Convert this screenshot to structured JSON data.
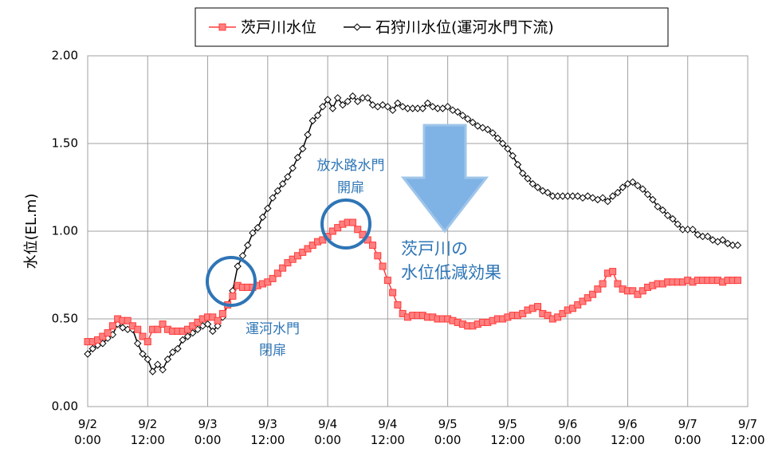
{
  "chart_data": {
    "type": "line",
    "y_label": "水位(EL.m)",
    "xlim": [
      0,
      132
    ],
    "ylim": [
      0,
      2
    ],
    "xticks": [
      {
        "value": 0,
        "label": "9/2 0:00"
      },
      {
        "value": 12,
        "label": "9/2 12:00"
      },
      {
        "value": 24,
        "label": "9/3 0:00"
      },
      {
        "value": 36,
        "label": "9/3 12:00"
      },
      {
        "value": 48,
        "label": "9/4 0:00"
      },
      {
        "value": 60,
        "label": "9/4 12:00"
      },
      {
        "value": 72,
        "label": "9/5 0:00"
      },
      {
        "value": 84,
        "label": "9/5 12:00"
      },
      {
        "value": 96,
        "label": "9/6 0:00"
      },
      {
        "value": 108,
        "label": "9/6 12:00"
      },
      {
        "value": 120,
        "label": "9/7 0:00"
      },
      {
        "value": 132,
        "label": "9/7 12:00"
      }
    ],
    "yticks": [
      {
        "value": 0,
        "label": "0.00"
      },
      {
        "value": 0.5,
        "label": "0.50"
      },
      {
        "value": 1,
        "label": "1.00"
      },
      {
        "value": 1.5,
        "label": "1.50"
      },
      {
        "value": 2,
        "label": "2.00"
      }
    ],
    "grid": true,
    "legend": "top",
    "x": [
      0,
      1,
      2,
      3,
      4,
      5,
      6,
      7,
      8,
      9,
      10,
      11,
      12,
      13,
      14,
      15,
      16,
      17,
      18,
      19,
      20,
      21,
      22,
      23,
      24,
      25,
      26,
      27,
      28,
      29,
      30,
      31,
      32,
      33,
      34,
      35,
      36,
      37,
      38,
      39,
      40,
      41,
      42,
      43,
      44,
      45,
      46,
      47,
      48,
      49,
      50,
      51,
      52,
      53,
      54,
      55,
      56,
      57,
      58,
      59,
      60,
      61,
      62,
      63,
      64,
      65,
      66,
      67,
      68,
      69,
      70,
      71,
      72,
      73,
      74,
      75,
      76,
      77,
      78,
      79,
      80,
      81,
      82,
      83,
      84,
      85,
      86,
      87,
      88,
      89,
      90,
      91,
      92,
      93,
      94,
      95,
      96,
      97,
      98,
      99,
      100,
      101,
      102,
      103,
      104,
      105,
      106,
      107,
      108,
      109,
      110,
      111,
      112,
      113,
      114,
      115,
      116,
      117,
      118,
      119,
      120,
      121,
      122,
      123,
      124,
      125,
      126,
      127,
      128,
      129,
      130
    ],
    "series": [
      {
        "name": "茨戸川水位",
        "color": "#ff3b3b",
        "marker": "square",
        "values": [
          0.37,
          0.37,
          0.38,
          0.4,
          0.42,
          0.46,
          0.5,
          0.49,
          0.49,
          0.46,
          0.44,
          0.4,
          0.37,
          0.44,
          0.44,
          0.47,
          0.44,
          0.43,
          0.43,
          0.43,
          0.44,
          0.46,
          0.48,
          0.5,
          0.51,
          0.51,
          0.49,
          0.53,
          0.58,
          0.63,
          0.69,
          0.68,
          0.68,
          0.68,
          0.69,
          0.7,
          0.71,
          0.73,
          0.76,
          0.79,
          0.82,
          0.84,
          0.86,
          0.88,
          0.9,
          0.92,
          0.94,
          0.95,
          0.97,
          1.0,
          1.02,
          1.04,
          1.05,
          1.05,
          1.01,
          0.98,
          0.95,
          0.92,
          0.86,
          0.8,
          0.72,
          0.65,
          0.58,
          0.53,
          0.51,
          0.52,
          0.52,
          0.52,
          0.51,
          0.51,
          0.5,
          0.5,
          0.5,
          0.49,
          0.48,
          0.47,
          0.46,
          0.46,
          0.47,
          0.48,
          0.48,
          0.49,
          0.5,
          0.5,
          0.51,
          0.52,
          0.52,
          0.53,
          0.55,
          0.56,
          0.57,
          0.53,
          0.52,
          0.5,
          0.51,
          0.53,
          0.55,
          0.56,
          0.58,
          0.6,
          0.62,
          0.64,
          0.67,
          0.7,
          0.76,
          0.77,
          0.7,
          0.67,
          0.66,
          0.66,
          0.64,
          0.66,
          0.68,
          0.69,
          0.7,
          0.7,
          0.71,
          0.71,
          0.71,
          0.71,
          0.72,
          0.71,
          0.72,
          0.72,
          0.72,
          0.72,
          0.72,
          0.71,
          0.72,
          0.72,
          0.72
        ]
      },
      {
        "name": "石狩川水位(運河水門下流)",
        "color": "#000000",
        "marker": "diamond",
        "values": [
          0.3,
          0.33,
          0.35,
          0.36,
          0.39,
          0.41,
          0.47,
          0.45,
          0.44,
          0.44,
          0.36,
          0.3,
          0.27,
          0.2,
          0.24,
          0.21,
          0.27,
          0.31,
          0.33,
          0.38,
          0.4,
          0.42,
          0.44,
          0.46,
          0.47,
          0.43,
          0.46,
          0.51,
          0.58,
          0.66,
          0.8,
          0.86,
          0.92,
          0.99,
          1.02,
          1.08,
          1.13,
          1.19,
          1.23,
          1.27,
          1.31,
          1.36,
          1.42,
          1.47,
          1.55,
          1.63,
          1.66,
          1.71,
          1.75,
          1.7,
          1.76,
          1.72,
          1.74,
          1.77,
          1.74,
          1.76,
          1.76,
          1.72,
          1.71,
          1.72,
          1.71,
          1.69,
          1.73,
          1.71,
          1.7,
          1.7,
          1.7,
          1.7,
          1.73,
          1.71,
          1.7,
          1.7,
          1.71,
          1.69,
          1.68,
          1.66,
          1.64,
          1.62,
          1.6,
          1.59,
          1.58,
          1.56,
          1.53,
          1.5,
          1.47,
          1.43,
          1.38,
          1.33,
          1.3,
          1.27,
          1.25,
          1.23,
          1.22,
          1.2,
          1.2,
          1.2,
          1.2,
          1.2,
          1.2,
          1.19,
          1.2,
          1.19,
          1.18,
          1.19,
          1.17,
          1.2,
          1.22,
          1.25,
          1.27,
          1.28,
          1.26,
          1.24,
          1.21,
          1.18,
          1.14,
          1.12,
          1.09,
          1.07,
          1.04,
          1.01,
          1.01,
          1.01,
          0.98,
          0.97,
          0.97,
          0.95,
          0.94,
          0.95,
          0.93,
          0.92,
          0.92
        ]
      }
    ],
    "annotations": [
      {
        "text": [
          "運河水門",
          "閉扉"
        ]
      },
      {
        "text": [
          "放水路水門",
          "開扉"
        ]
      },
      {
        "text": [
          "茨戸川の",
          "水位低減効果"
        ]
      }
    ]
  }
}
